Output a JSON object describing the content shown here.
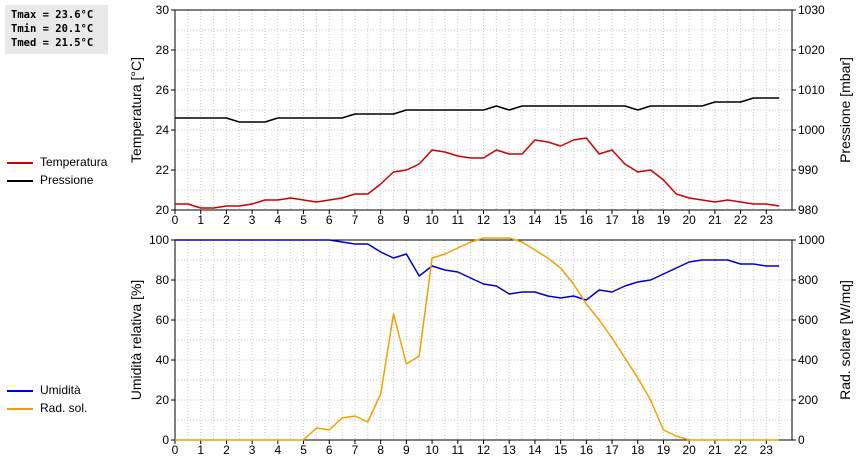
{
  "stats": {
    "tmax": "Tmax = 23.6°C",
    "tmin": "Tmin = 20.1°C",
    "tmed": "Tmed = 21.5°C"
  },
  "legend_top": [
    {
      "label": "Temperatura",
      "color": "#cc0000"
    },
    {
      "label": "Pressione",
      "color": "#000000"
    }
  ],
  "legend_bottom": [
    {
      "label": "Umidità",
      "color": "#0000cc"
    },
    {
      "label": "Rad. sol.",
      "color": "#f0a000"
    }
  ],
  "chart_data": [
    {
      "type": "line",
      "xlabel": "",
      "x_ticks": [
        0,
        1,
        2,
        3,
        4,
        5,
        6,
        7,
        8,
        9,
        10,
        11,
        12,
        13,
        14,
        15,
        16,
        17,
        18,
        19,
        20,
        21,
        22,
        23
      ],
      "xlim": [
        0,
        24
      ],
      "ylabel_left": "Temperatura [°C]",
      "ylim_left": [
        20,
        30
      ],
      "yticks_left": [
        20,
        22,
        24,
        26,
        28,
        30
      ],
      "ylabel_right": "Pressione [mbar]",
      "ylim_right": [
        980,
        1030
      ],
      "yticks_right": [
        980,
        990,
        1000,
        1010,
        1020,
        1030
      ],
      "grid": true,
      "series": [
        {
          "name": "Temperatura",
          "axis": "left",
          "color": "#cc0000",
          "x": [
            0,
            0.5,
            1,
            1.5,
            2,
            2.5,
            3,
            3.5,
            4,
            4.5,
            5,
            5.5,
            6,
            6.5,
            7,
            7.5,
            8,
            8.5,
            9,
            9.5,
            10,
            10.5,
            11,
            11.5,
            12,
            12.5,
            13,
            13.5,
            14,
            14.5,
            15,
            15.5,
            16,
            16.5,
            17,
            17.5,
            18,
            18.5,
            19,
            19.5,
            20,
            20.5,
            21,
            21.5,
            22,
            22.5,
            23,
            23.5
          ],
          "y": [
            20.3,
            20.3,
            20.1,
            20.1,
            20.2,
            20.2,
            20.3,
            20.5,
            20.5,
            20.6,
            20.5,
            20.4,
            20.5,
            20.6,
            20.8,
            20.8,
            21.3,
            21.9,
            22.0,
            22.3,
            23.0,
            22.9,
            22.7,
            22.6,
            22.6,
            23.0,
            22.8,
            22.8,
            23.5,
            23.4,
            23.2,
            23.5,
            23.6,
            22.8,
            23.0,
            22.3,
            21.9,
            22.0,
            21.5,
            20.8,
            20.6,
            20.5,
            20.4,
            20.5,
            20.4,
            20.3,
            20.3,
            20.2
          ]
        },
        {
          "name": "Pressione",
          "axis": "right",
          "color": "#000000",
          "x": [
            0,
            0.5,
            1,
            1.5,
            2,
            2.5,
            3,
            3.5,
            4,
            4.5,
            5,
            5.5,
            6,
            6.5,
            7,
            7.5,
            8,
            8.5,
            9,
            9.5,
            10,
            10.5,
            11,
            11.5,
            12,
            12.5,
            13,
            13.5,
            14,
            14.5,
            15,
            15.5,
            16,
            16.5,
            17,
            17.5,
            18,
            18.5,
            19,
            19.5,
            20,
            20.5,
            21,
            21.5,
            22,
            22.5,
            23,
            23.5
          ],
          "y": [
            1003,
            1003,
            1003,
            1003,
            1003,
            1002,
            1002,
            1002,
            1003,
            1003,
            1003,
            1003,
            1003,
            1003,
            1004,
            1004,
            1004,
            1004,
            1005,
            1005,
            1005,
            1005,
            1005,
            1005,
            1005,
            1006,
            1005,
            1006,
            1006,
            1006,
            1006,
            1006,
            1006,
            1006,
            1006,
            1006,
            1005,
            1006,
            1006,
            1006,
            1006,
            1006,
            1007,
            1007,
            1007,
            1008,
            1008,
            1008
          ]
        }
      ]
    },
    {
      "type": "line",
      "xlabel": "",
      "x_ticks": [
        0,
        1,
        2,
        3,
        4,
        5,
        6,
        7,
        8,
        9,
        10,
        11,
        12,
        13,
        14,
        15,
        16,
        17,
        18,
        19,
        20,
        21,
        22,
        23
      ],
      "xlim": [
        0,
        24
      ],
      "ylabel_left": "Umidità relativa [%]",
      "ylim_left": [
        0,
        100
      ],
      "yticks_left": [
        0,
        20,
        40,
        60,
        80,
        100
      ],
      "ylabel_right": "Rad. solare [W/mq]",
      "ylim_right": [
        0,
        1000
      ],
      "yticks_right": [
        0,
        200,
        400,
        600,
        800,
        1000
      ],
      "grid": true,
      "series": [
        {
          "name": "Umidità",
          "axis": "left",
          "color": "#0000cc",
          "x": [
            0,
            0.5,
            1,
            1.5,
            2,
            2.5,
            3,
            3.5,
            4,
            4.5,
            5,
            5.5,
            6,
            6.5,
            7,
            7.5,
            8,
            8.5,
            9,
            9.5,
            10,
            10.5,
            11,
            11.5,
            12,
            12.5,
            13,
            13.5,
            14,
            14.5,
            15,
            15.5,
            16,
            16.5,
            17,
            17.5,
            18,
            18.5,
            19,
            19.5,
            20,
            20.5,
            21,
            21.5,
            22,
            22.5,
            23,
            23.5
          ],
          "y": [
            100,
            100,
            100,
            100,
            100,
            100,
            100,
            100,
            100,
            100,
            100,
            100,
            100,
            99,
            98,
            98,
            94,
            91,
            93,
            82,
            87,
            85,
            84,
            81,
            78,
            77,
            73,
            74,
            74,
            72,
            71,
            72,
            70,
            75,
            74,
            77,
            79,
            80,
            83,
            86,
            89,
            90,
            90,
            90,
            88,
            88,
            87,
            87
          ]
        },
        {
          "name": "Rad. sol.",
          "axis": "right",
          "color": "#f0a000",
          "x": [
            0,
            0.5,
            1,
            1.5,
            2,
            2.5,
            3,
            3.5,
            4,
            4.5,
            5,
            5.5,
            6,
            6.5,
            7,
            7.5,
            8,
            8.5,
            9,
            9.5,
            10,
            10.5,
            11,
            11.5,
            12,
            12.5,
            13,
            13.5,
            14,
            14.5,
            15,
            15.5,
            16,
            16.5,
            17,
            17.5,
            18,
            18.5,
            19,
            19.5,
            20,
            20.5,
            21,
            21.5,
            22,
            22.5,
            23,
            23.5
          ],
          "y": [
            0,
            0,
            0,
            0,
            0,
            0,
            0,
            0,
            0,
            0,
            0,
            60,
            50,
            110,
            120,
            90,
            230,
            630,
            380,
            420,
            910,
            930,
            960,
            990,
            1010,
            1010,
            1010,
            990,
            950,
            910,
            860,
            780,
            680,
            600,
            510,
            410,
            310,
            200,
            50,
            20,
            0,
            0,
            0,
            0,
            0,
            0,
            0,
            0
          ]
        }
      ]
    }
  ]
}
